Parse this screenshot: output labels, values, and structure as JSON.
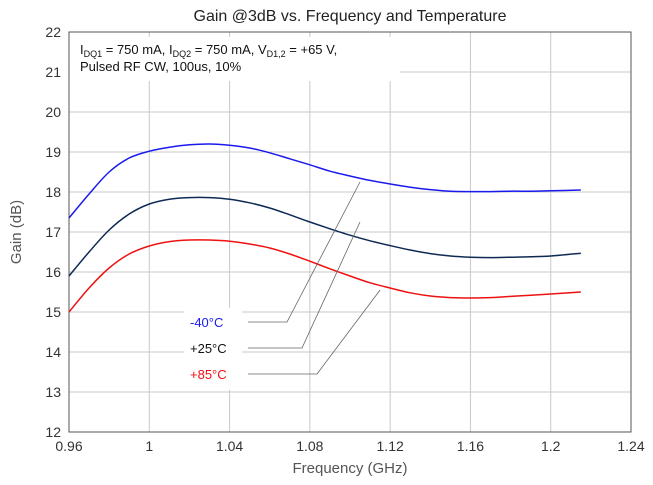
{
  "chart_data": {
    "type": "line",
    "title": "Gain @3dB vs. Frequency and Temperature",
    "xlabel": "Frequency (GHz)",
    "ylabel": "Gain (dB)",
    "xlim": [
      0.96,
      1.24
    ],
    "ylim": [
      12,
      22
    ],
    "x_ticks": [
      "0.96",
      "1",
      "1.04",
      "1.08",
      "1.12",
      "1.16",
      "1.2",
      "1.24"
    ],
    "y_ticks": [
      "12",
      "13",
      "14",
      "15",
      "16",
      "17",
      "18",
      "19",
      "20",
      "21",
      "22"
    ],
    "grid": true,
    "conditions": {
      "line1": {
        "i1": "I",
        "i1_sub": "DQ1",
        "i1_val": " = 750 mA, ",
        "i2": "I",
        "i2_sub": "DQ2",
        "i2_val": " = 750 mA, ",
        "v": "V",
        "v_sub": "D1,2",
        "v_val": " = +65 V,"
      },
      "line2": "Pulsed RF CW, 100us, 10%"
    },
    "series": [
      {
        "name": "-40°C",
        "color": "#1a1aee",
        "x": [
          0.96,
          0.97,
          0.98,
          0.99,
          1.0,
          1.01,
          1.02,
          1.03,
          1.04,
          1.05,
          1.06,
          1.07,
          1.08,
          1.09,
          1.1,
          1.11,
          1.12,
          1.13,
          1.14,
          1.15,
          1.16,
          1.17,
          1.18,
          1.19,
          1.2,
          1.215
        ],
        "y": [
          17.35,
          17.95,
          18.5,
          18.85,
          19.02,
          19.12,
          19.18,
          19.2,
          19.17,
          19.1,
          18.98,
          18.83,
          18.68,
          18.52,
          18.4,
          18.29,
          18.2,
          18.12,
          18.06,
          18.02,
          18.01,
          18.01,
          18.02,
          18.02,
          18.03,
          18.05
        ]
      },
      {
        "name": "+25°C",
        "color": "#0e2a54",
        "x": [
          0.96,
          0.97,
          0.98,
          0.99,
          1.0,
          1.01,
          1.02,
          1.03,
          1.04,
          1.05,
          1.06,
          1.07,
          1.08,
          1.09,
          1.1,
          1.11,
          1.12,
          1.13,
          1.14,
          1.15,
          1.16,
          1.17,
          1.18,
          1.19,
          1.2,
          1.215
        ],
        "y": [
          15.9,
          16.5,
          17.05,
          17.45,
          17.7,
          17.82,
          17.86,
          17.86,
          17.82,
          17.73,
          17.6,
          17.43,
          17.25,
          17.08,
          16.92,
          16.78,
          16.66,
          16.55,
          16.46,
          16.4,
          16.37,
          16.36,
          16.37,
          16.38,
          16.4,
          16.47
        ]
      },
      {
        "name": "+85°C",
        "color": "#ee1111",
        "x": [
          0.96,
          0.97,
          0.98,
          0.99,
          1.0,
          1.01,
          1.02,
          1.03,
          1.04,
          1.05,
          1.06,
          1.07,
          1.08,
          1.09,
          1.1,
          1.11,
          1.12,
          1.13,
          1.14,
          1.15,
          1.16,
          1.17,
          1.18,
          1.19,
          1.2,
          1.215
        ],
        "y": [
          15.0,
          15.6,
          16.1,
          16.45,
          16.65,
          16.76,
          16.8,
          16.8,
          16.77,
          16.7,
          16.6,
          16.45,
          16.27,
          16.08,
          15.9,
          15.73,
          15.6,
          15.48,
          15.4,
          15.36,
          15.35,
          15.36,
          15.39,
          15.42,
          15.45,
          15.5
        ]
      }
    ],
    "legend": [
      {
        "label": "-40°C",
        "color": "#1a1aee",
        "leader_x": 1.105,
        "leader_y": 18.25
      },
      {
        "label": "+25°C",
        "color": "#111111",
        "leader_x": 1.105,
        "leader_y": 17.25
      },
      {
        "label": "+85°C",
        "color": "#ee1111",
        "leader_x": 1.115,
        "leader_y": 15.55
      }
    ]
  }
}
